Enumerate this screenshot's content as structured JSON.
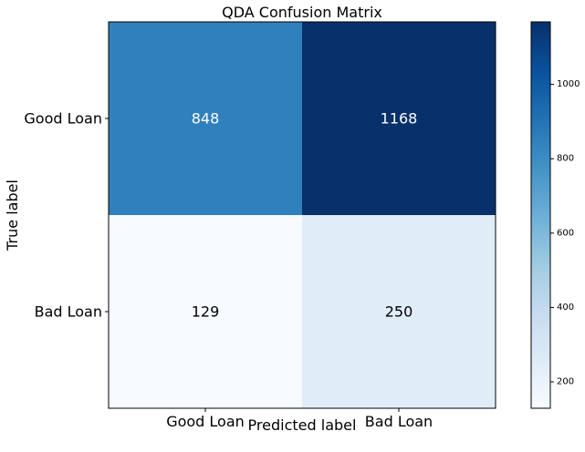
{
  "chart_data": {
    "type": "heatmap",
    "title": "QDA Confusion Matrix",
    "xlabel": "Predicted label",
    "ylabel": "True label",
    "x_categories": [
      "Good Loan",
      "Bad Loan"
    ],
    "y_categories": [
      "Good Loan",
      "Bad Loan"
    ],
    "values": [
      [
        848,
        1168
      ],
      [
        129,
        250
      ]
    ],
    "colormap": "Blues",
    "colorbar": {
      "range": [
        129,
        1168
      ],
      "ticks": [
        200,
        400,
        600,
        800,
        1000
      ]
    },
    "grid": false
  }
}
